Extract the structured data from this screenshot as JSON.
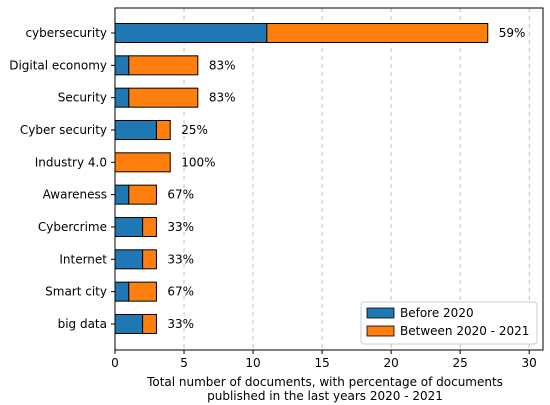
{
  "colors": {
    "before": "#1f77b4",
    "between": "#ff7f0e"
  },
  "chart_data": {
    "type": "bar",
    "orientation": "horizontal",
    "stacked": true,
    "categories": [
      "cybersecurity",
      "Digital economy",
      "Security",
      "Cyber security",
      "Industry 4.0",
      "Awareness",
      "Cybercrime",
      "Internet",
      "Smart city",
      "big data"
    ],
    "series": [
      {
        "name": "Before 2020",
        "values": [
          11,
          1,
          1,
          3,
          0,
          1,
          2,
          2,
          1,
          2
        ]
      },
      {
        "name": "Between 2020 - 2021",
        "values": [
          16,
          5,
          5,
          1,
          4,
          2,
          1,
          1,
          2,
          1
        ]
      }
    ],
    "percent_labels": [
      "59%",
      "83%",
      "83%",
      "25%",
      "100%",
      "67%",
      "33%",
      "33%",
      "67%",
      "33%"
    ],
    "xlabel_line1": "Total number of documents, with percentage of documents",
    "xlabel_line2": "published in the last years 2020 - 2021",
    "xlim": [
      0,
      31
    ],
    "xticks": [
      0,
      5,
      10,
      15,
      20,
      25,
      30
    ],
    "grid": "x-dashed",
    "legend_position": "lower-right"
  }
}
